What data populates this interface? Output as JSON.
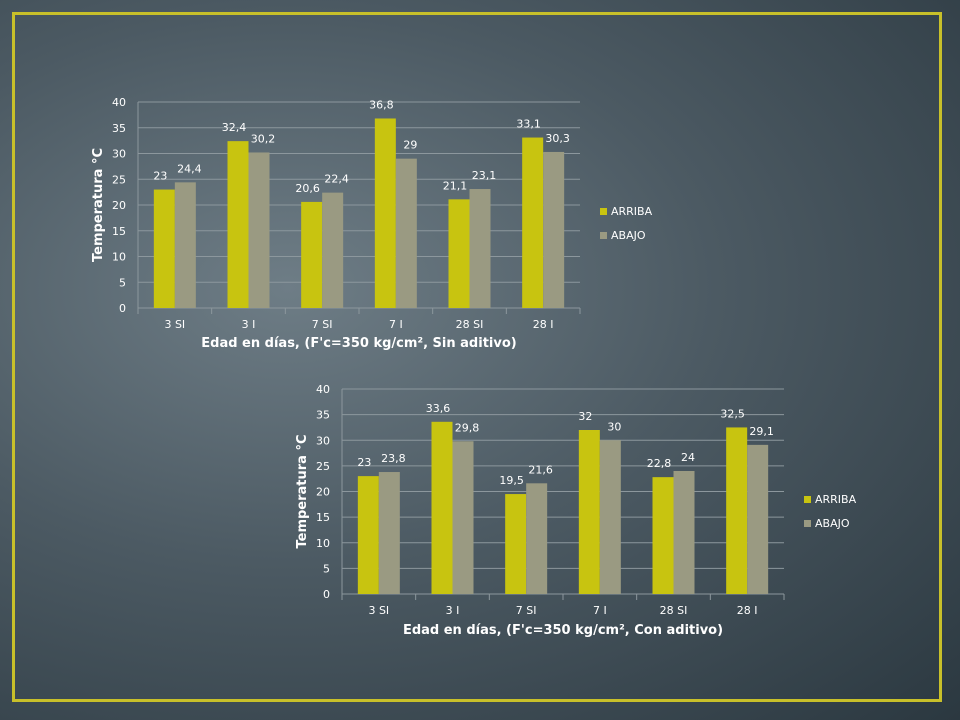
{
  "colors": {
    "frame": "#c8c02a",
    "arriba": "#c8c410",
    "abajo": "#9a9a82",
    "grid": "#8c979d"
  },
  "chart_data": [
    {
      "type": "bar",
      "categories": [
        "3 SI",
        "3 I",
        "7 SI",
        "7 I",
        "28 SI",
        "28 I"
      ],
      "series": [
        {
          "name": "ARRIBA",
          "values": [
            23,
            32.4,
            20.6,
            36.8,
            21.1,
            33.1
          ],
          "labels": [
            "23",
            "32,4",
            "20,6",
            "36,8",
            "21,1",
            "33,1"
          ]
        },
        {
          "name": "ABAJO",
          "values": [
            24.4,
            30.2,
            22.4,
            29,
            23.1,
            30.3
          ],
          "labels": [
            "24,4",
            "30,2",
            "22,4",
            "29",
            "23,1",
            "30,3"
          ]
        }
      ],
      "yticks": [
        "0",
        "5",
        "10",
        "15",
        "20",
        "25",
        "30",
        "35",
        "40"
      ],
      "ylim": [
        0,
        40
      ],
      "xlabel": "Edad en días, (F'c=350 kg/cm², Sin aditivo)",
      "ylabel": "Temperatura °C",
      "grid": true,
      "legend": "right"
    },
    {
      "type": "bar",
      "categories": [
        "3 SI",
        "3 I",
        "7 SI",
        "7 I",
        "28 SI",
        "28 I"
      ],
      "series": [
        {
          "name": "ARRIBA",
          "values": [
            23,
            33.6,
            19.5,
            32,
            22.8,
            32.5
          ],
          "labels": [
            "23",
            "33,6",
            "19,5",
            "32",
            "22,8",
            "32,5"
          ]
        },
        {
          "name": "ABAJO",
          "values": [
            23.8,
            29.8,
            21.6,
            30,
            24,
            29.1
          ],
          "labels": [
            "23,8",
            "29,8",
            "21,6",
            "30",
            "24",
            "29,1"
          ]
        }
      ],
      "yticks": [
        "0",
        "5",
        "10",
        "15",
        "20",
        "25",
        "30",
        "35",
        "40"
      ],
      "ylim": [
        0,
        40
      ],
      "xlabel": "Edad en días, (F'c=350 kg/cm², Con aditivo)",
      "ylabel": "Temperatura °C",
      "grid": true,
      "legend": "right"
    }
  ]
}
